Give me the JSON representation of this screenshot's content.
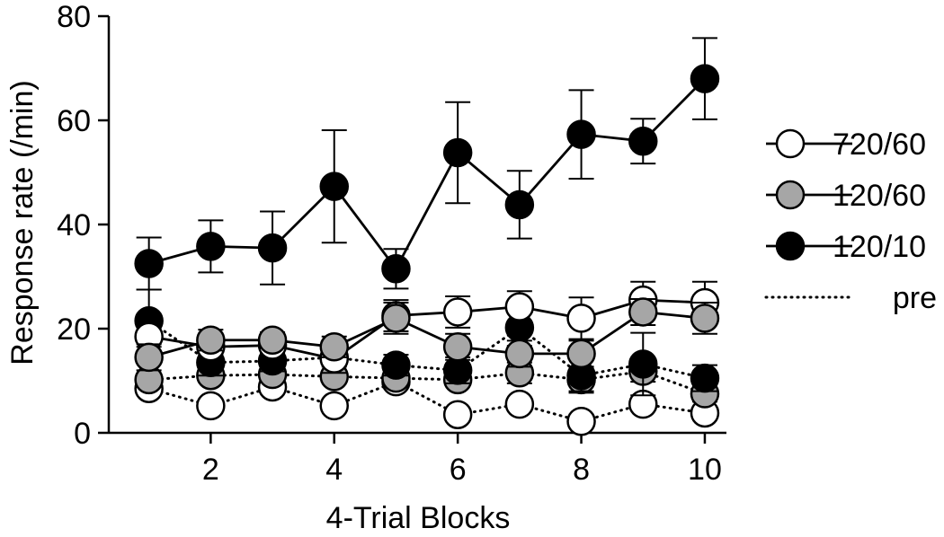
{
  "chart_data": {
    "type": "line",
    "title": "",
    "xlabel": "4-Trial Blocks",
    "ylabel": "Response rate (/min)",
    "xlim": [
      0.35,
      10.35
    ],
    "ylim": [
      0,
      80
    ],
    "xticks": [
      2,
      4,
      6,
      8,
      10
    ],
    "yticks": [
      0,
      20,
      40,
      60,
      80
    ],
    "grid": false,
    "legend_position": "right",
    "x": [
      1,
      2,
      3,
      4,
      5,
      6,
      7,
      8,
      9,
      10
    ],
    "series": [
      {
        "name": "720/60",
        "style": "solid",
        "fill": "#ffffff",
        "values": [
          18.5,
          16.5,
          16.8,
          14.2,
          22.5,
          23.2,
          24.2,
          22.0,
          25.5,
          25.0
        ],
        "errors": [
          2.0,
          1.5,
          1.5,
          1.5,
          3.0,
          3.0,
          3.0,
          4.0,
          3.5,
          4.0
        ]
      },
      {
        "name": "120/60",
        "style": "solid",
        "fill": "#a6a6a6",
        "values": [
          14.5,
          17.8,
          17.8,
          16.5,
          22.0,
          16.5,
          15.2,
          15.2,
          23.2,
          22.0
        ],
        "errors": [
          2.5,
          2.0,
          1.5,
          2.0,
          3.0,
          2.5,
          2.5,
          2.5,
          2.5,
          3.0
        ]
      },
      {
        "name": "120/10",
        "style": "solid",
        "fill": "#000000",
        "values": [
          32.5,
          35.8,
          35.5,
          47.3,
          31.5,
          53.8,
          43.8,
          57.3,
          56.0,
          68.0
        ],
        "errors": [
          5.0,
          5.0,
          7.0,
          10.8,
          3.8,
          9.7,
          6.5,
          8.5,
          4.3,
          7.8
        ]
      },
      {
        "name": "pre",
        "style": "dotted",
        "marker_fill": "#ffffff",
        "values": [
          8.5,
          5.2,
          8.8,
          5.2,
          9.8,
          3.5,
          5.5,
          2.2,
          5.5,
          3.8
        ],
        "errors": [
          1.0,
          1.0,
          1.0,
          1.0,
          1.0,
          1.0,
          1.0,
          1.0,
          1.0,
          1.0
        ]
      },
      {
        "name": "",
        "style": "dotted",
        "marker_fill": "#a6a6a6",
        "values": [
          10.2,
          11.0,
          11.2,
          10.8,
          10.5,
          10.2,
          11.5,
          10.2,
          11.8,
          7.5
        ],
        "errors": [
          1.0,
          1.0,
          1.0,
          1.0,
          1.0,
          1.0,
          2.0,
          2.5,
          2.0,
          1.5
        ]
      },
      {
        "name": "",
        "style": "dotted",
        "marker_fill": "#000000",
        "values": [
          21.5,
          13.5,
          13.8,
          14.5,
          13.0,
          12.0,
          20.2,
          11.0,
          13.2,
          10.5
        ],
        "errors": [
          6.0,
          2.5,
          2.0,
          3.0,
          2.0,
          2.5,
          3.5,
          3.0,
          6.0,
          2.5
        ]
      }
    ]
  }
}
